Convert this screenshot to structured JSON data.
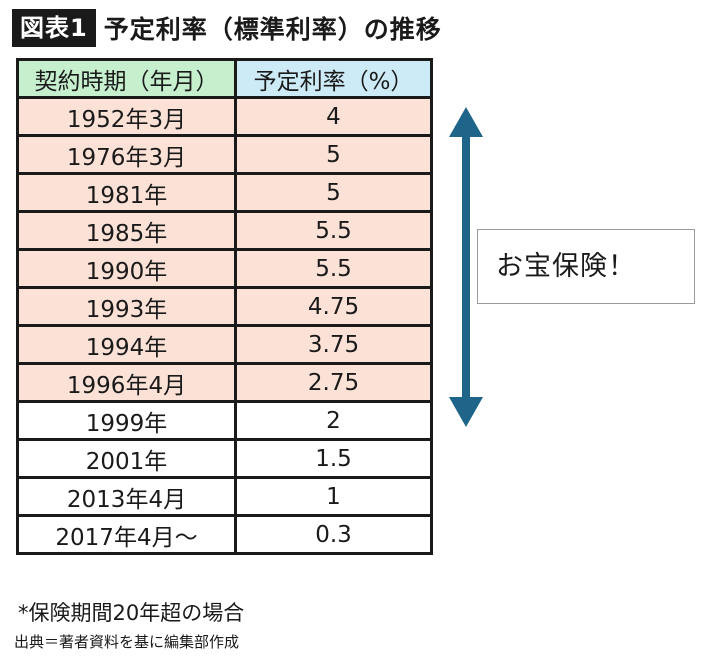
{
  "header": {
    "badge": "図表1",
    "title": "予定利率（標準利率）の推移"
  },
  "table": {
    "headers": [
      "契約時期（年月）",
      "予定利率（%）"
    ],
    "rows": [
      {
        "period": "1952年3月",
        "rate": "4"
      },
      {
        "period": "1976年3月",
        "rate": "5"
      },
      {
        "period": "1981年",
        "rate": "5"
      },
      {
        "period": "1985年",
        "rate": "5.5"
      },
      {
        "period": "1990年",
        "rate": "5.5"
      },
      {
        "period": "1993年",
        "rate": "4.75"
      },
      {
        "period": "1994年",
        "rate": "3.75"
      },
      {
        "period": "1996年4月",
        "rate": "2.75"
      },
      {
        "period": "1999年",
        "rate": "2"
      },
      {
        "period": "2001年",
        "rate": "1.5"
      },
      {
        "period": "2013年4月",
        "rate": "1"
      },
      {
        "period": "2017年4月～",
        "rate": "0.3"
      }
    ]
  },
  "colors": {
    "header_period": "#c6efce",
    "header_rate": "#cdeaf7",
    "highlight_row": "#fbe1d6",
    "arrow": "#1f6589"
  },
  "callout": {
    "text": "お宝保険！"
  },
  "note": "*保険期間20年超の場合",
  "source": "出典＝著者資料を基に編集部作成"
}
